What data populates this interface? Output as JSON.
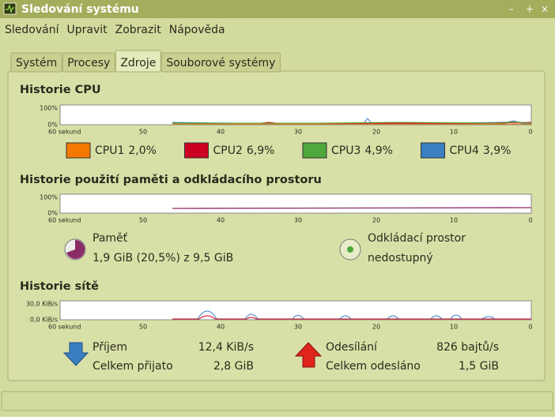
{
  "window": {
    "title": "Sledování systému"
  },
  "menu": [
    "Sledování",
    "Upravit",
    "Zobrazit",
    "Nápověda"
  ],
  "tabs": [
    "Systém",
    "Procesy",
    "Zdroje",
    "Souborové systémy"
  ],
  "cpu": {
    "title": "Historie CPU",
    "y_labels": [
      "100%",
      "0%"
    ],
    "x_labels": [
      "60 sekund",
      "50",
      "40",
      "30",
      "20",
      "10",
      "0"
    ],
    "legend": [
      {
        "name": "CPU1",
        "value": "2,0%",
        "color": "#f57900"
      },
      {
        "name": "CPU2",
        "value": "6,9%",
        "color": "#cc0022"
      },
      {
        "name": "CPU3",
        "value": "4,9%",
        "color": "#4ea83c"
      },
      {
        "name": "CPU4",
        "value": "3,9%",
        "color": "#3a7fc2"
      }
    ]
  },
  "memory": {
    "title": "Historie použití paměti a odkládacího prostoru",
    "y_labels": [
      "100%",
      "0%"
    ],
    "x_labels": [
      "60 sekund",
      "50",
      "40",
      "30",
      "20",
      "10",
      "0"
    ],
    "ram": {
      "name": "Paměť",
      "value": "1,9 GiB (20,5%) z 9,5 GiB"
    },
    "swap": {
      "name": "Odkládací prostor",
      "value": "nedostupný"
    }
  },
  "network": {
    "title": "Historie sítě",
    "y_labels": [
      "30,0 KiB/s",
      "0,0 KiB/s"
    ],
    "x_labels": [
      "60 sekund",
      "50",
      "40",
      "30",
      "20",
      "10",
      "0"
    ],
    "receive": {
      "name": "Příjem",
      "rate": "12,4 KiB/s",
      "total_label": "Celkem přijato",
      "total": "2,8 GiB"
    },
    "send": {
      "name": "Odesílání",
      "rate": "826 bajtů/s",
      "total_label": "Celkem odesláno",
      "total": "1,5 GiB"
    }
  }
}
